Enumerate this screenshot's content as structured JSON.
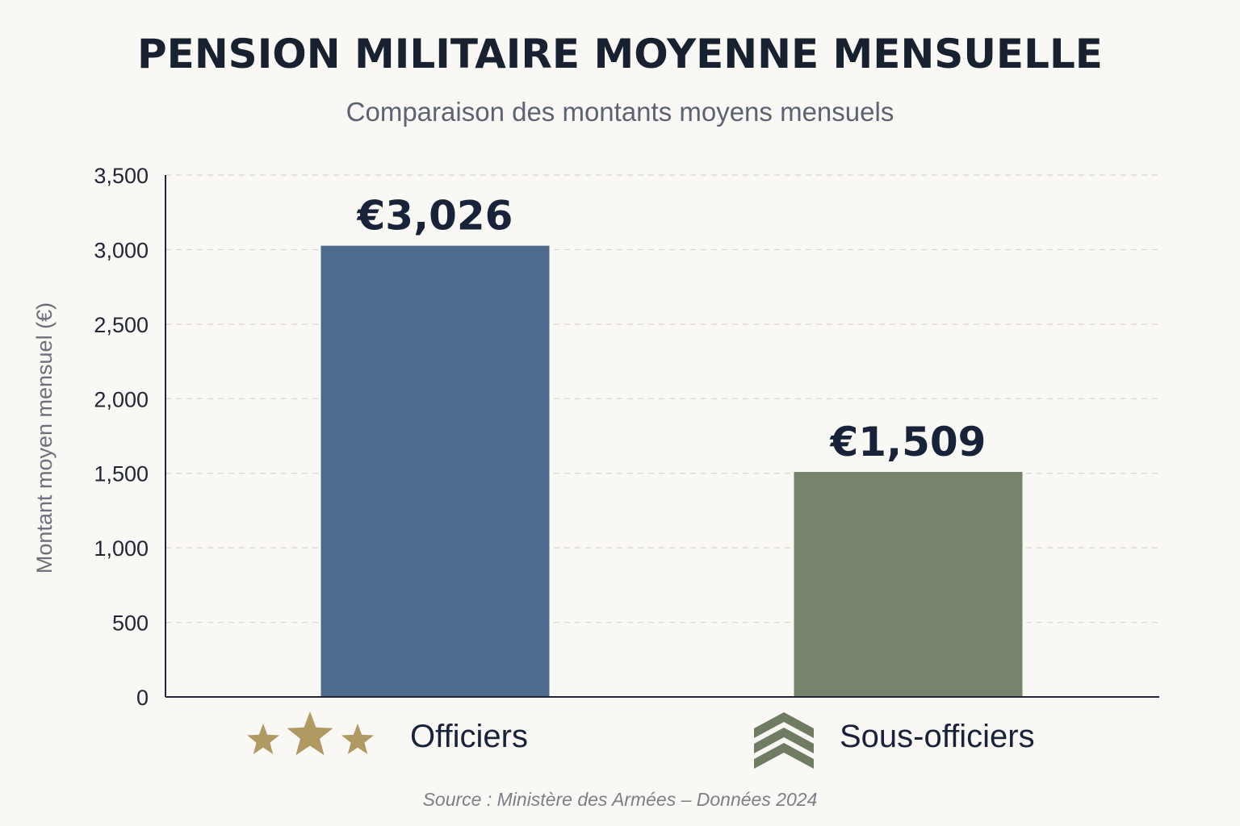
{
  "chart_data": {
    "type": "bar",
    "title": "PENSION MILITAIRE MOYENNE MENSUELLE",
    "subtitle": "Comparaison des montants moyens mensuels",
    "ylabel": "Montant moyen mensuel (€)",
    "xlabel": "",
    "ylim": [
      0,
      3500
    ],
    "yticks": [
      "0",
      "500",
      "1,000",
      "1,500",
      "2,000",
      "2,500",
      "3,000",
      "3,500"
    ],
    "grid": true,
    "categories": [
      "Officiers",
      "Sous-officiers"
    ],
    "values": [
      3026,
      1509
    ],
    "value_labels": [
      "€3,026",
      "€1,509"
    ],
    "category_icons": [
      "three-stars-icon",
      "chevrons-rank-icon"
    ],
    "colors": [
      "#4e6a8c",
      "#76846b"
    ],
    "icon_colors": [
      "#b09a63",
      "#6f7c62"
    ]
  },
  "source": "Source : Ministère des Armées – Données 2024"
}
